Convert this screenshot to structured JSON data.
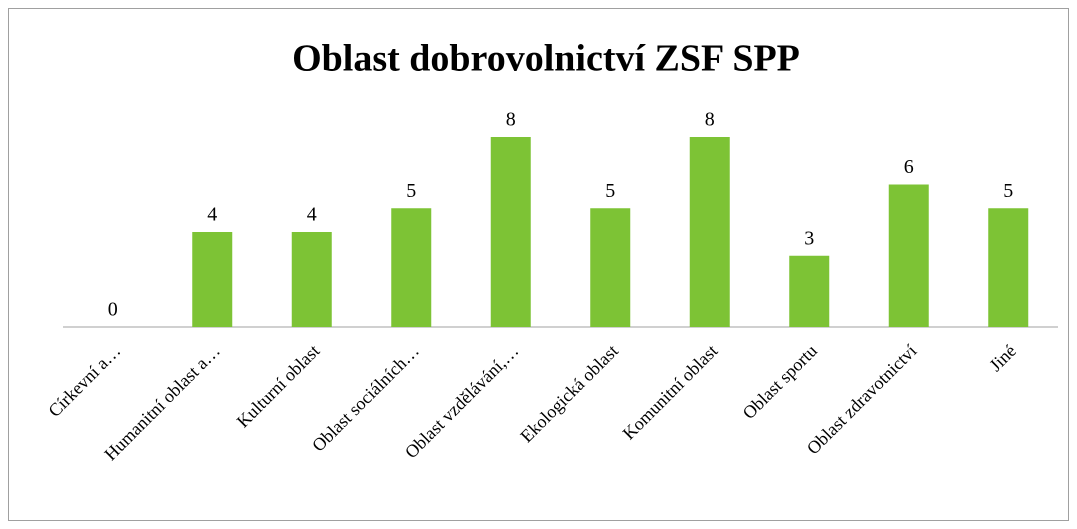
{
  "chart_data": {
    "type": "bar",
    "title": "Oblast dobrovolnictví ZSF SPP",
    "categories": [
      "Církevní a…",
      "Humanitní oblast a…",
      "Kulturní oblast",
      "Oblast sociálních…",
      "Oblast vzdělávání,…",
      "Ekologická oblast",
      "Komunitní oblast",
      "Oblast sportu",
      "Oblast zdravotnictví",
      "Jiné"
    ],
    "values": [
      0,
      4,
      4,
      5,
      8,
      5,
      8,
      3,
      6,
      5
    ],
    "color": "#7dc335"
  }
}
